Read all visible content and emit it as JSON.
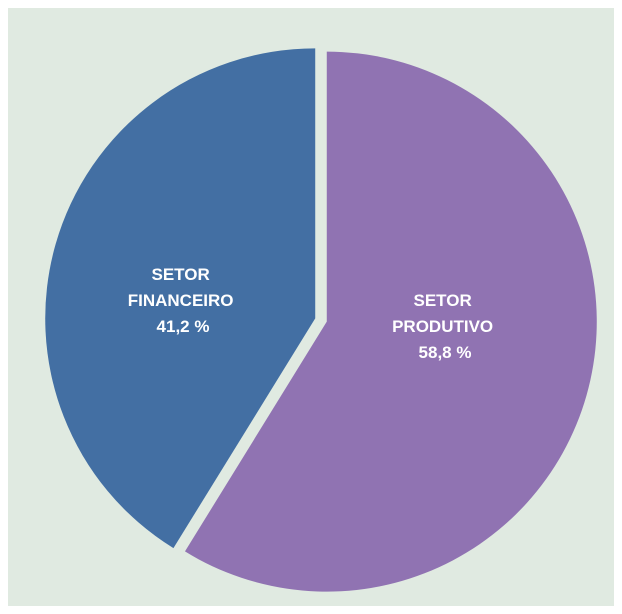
{
  "chart_data": {
    "type": "pie",
    "title": "",
    "slices": [
      {
        "label_lines": [
          "SETOR",
          "PRODUTIVO"
        ],
        "value": 58.8,
        "value_label": "58,8 %",
        "color": "#9073b2"
      },
      {
        "label_lines": [
          "SETOR",
          "FINANCEIRO"
        ],
        "value": 41.2,
        "value_label": "41,2 %",
        "color": "#436fa3"
      }
    ],
    "background_color": "#e0eae1"
  }
}
